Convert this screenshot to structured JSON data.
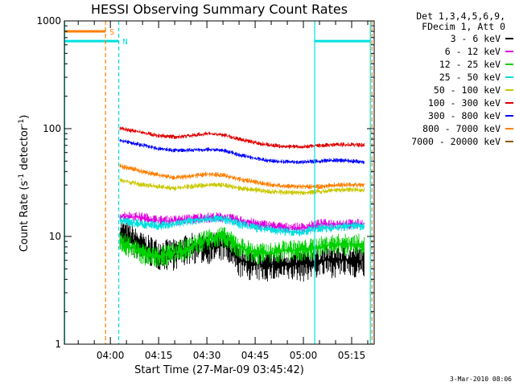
{
  "title": "HESSI Observing Summary Count Rates",
  "chart_data": {
    "type": "line",
    "title": "HESSI Observing Summary Count Rates",
    "xlabel": "Start Time (27-Mar-09 03:45:42)",
    "ylabel_main": "Count Rate (s",
    "ylabel_sup1": "-1",
    "ylabel_mid": " detector",
    "ylabel_sup2": "-1",
    "ylabel_end": ")",
    "yscale": "log",
    "ylim": [
      1,
      1000
    ],
    "xlim_minutes": [
      45.7,
      142
    ],
    "x_ticks": [
      "04:00",
      "04:15",
      "04:30",
      "04:45",
      "05:00",
      "05:15"
    ],
    "x_tick_minutes": [
      60,
      75,
      90,
      105,
      120,
      135
    ],
    "y_ticks": [
      "1",
      "10",
      "100",
      "1000"
    ],
    "y_tick_values": [
      1,
      10,
      100,
      1000
    ],
    "grid": false,
    "legend_placement": "right",
    "legend_header": [
      "Det 1,3,4,5,6,9,",
      "FDecim 1, Att 0"
    ],
    "x_minutes": [
      63,
      70,
      75,
      80,
      85,
      90,
      95,
      100,
      105,
      110,
      115,
      120,
      125,
      130,
      135,
      139
    ],
    "series": [
      {
        "name": "3 - 6 keV",
        "color": "#000000",
        "noise": 0.35,
        "values": [
          11,
          8,
          7,
          7,
          8,
          8,
          8.5,
          6,
          5.5,
          5.5,
          5.5,
          5.5,
          6,
          6,
          6,
          6
        ]
      },
      {
        "name": "6 - 12 keV",
        "color": "#e000e0",
        "noise": 0.12,
        "values": [
          15.5,
          15,
          14,
          14,
          14.5,
          15,
          15,
          14,
          13,
          12.5,
          12,
          12,
          13,
          13,
          13,
          13
        ]
      },
      {
        "name": "12 - 25 keV",
        "color": "#00d000",
        "noise": 0.25,
        "values": [
          9,
          7,
          6.5,
          7,
          8,
          9.5,
          10,
          8,
          7,
          7,
          7.5,
          7.5,
          8,
          8.5,
          8.5,
          8.5
        ]
      },
      {
        "name": "25 - 50 keV",
        "color": "#00e0e0",
        "noise": 0.1,
        "values": [
          14,
          13,
          12.5,
          13,
          14,
          14.5,
          14.5,
          13,
          12,
          11.5,
          11,
          11,
          12,
          12,
          12.5,
          12.5
        ]
      },
      {
        "name": "50 - 100 keV",
        "color": "#c8c800",
        "noise": 0.06,
        "values": [
          33,
          30,
          29,
          28,
          29,
          30,
          30,
          28,
          27,
          26,
          25.5,
          25.5,
          26,
          27,
          27,
          27
        ]
      },
      {
        "name": "100 - 300 keV",
        "color": "#e00000",
        "noise": 0.05,
        "values": [
          100,
          92,
          86,
          84,
          86,
          90,
          88,
          80,
          74,
          70,
          68,
          68,
          70,
          71,
          71,
          70
        ]
      },
      {
        "name": "300 - 800 keV",
        "color": "#0000ff",
        "noise": 0.05,
        "values": [
          78,
          70,
          65,
          63,
          63,
          64,
          63,
          57,
          53,
          50,
          49,
          49,
          50,
          51,
          50,
          49
        ]
      },
      {
        "name": "800 - 7000 keV",
        "color": "#ff7f00",
        "noise": 0.06,
        "values": [
          45,
          40,
          37,
          35,
          36,
          38,
          37,
          34,
          32,
          30,
          29,
          29,
          29,
          30,
          30,
          30
        ]
      },
      {
        "name": "7000 - 20000 keV",
        "color": "#8b5a00",
        "noise": 0,
        "values": []
      }
    ],
    "flag_lines": [
      {
        "label": "S",
        "color": "#ff7f00",
        "y": 800,
        "x_start": 45.7,
        "x_end": 58.5
      },
      {
        "label": "N",
        "color": "#00e0e0",
        "y": 650,
        "x_start": 45.7,
        "x_end": 62.6
      },
      {
        "label": "",
        "color": "#00e0e0",
        "y": 650,
        "x_start": 123.5,
        "x_end": 140.8
      }
    ],
    "vertical_lines": [
      {
        "color": "#00e0e0",
        "x": 45.8,
        "style": "solid"
      },
      {
        "color": "#ff7f00",
        "x": 58.5,
        "style": "dashed"
      },
      {
        "color": "#00e0e0",
        "x": 62.6,
        "style": "dashed"
      },
      {
        "color": "#00e0e0",
        "x": 123.5,
        "style": "solid"
      },
      {
        "color": "#00e0e0",
        "x": 140.8,
        "style": "solid"
      },
      {
        "color": "#ff7f00",
        "x": 141.3,
        "style": "dashed"
      }
    ]
  },
  "timestamp": "3-Mar-2010 08:06"
}
